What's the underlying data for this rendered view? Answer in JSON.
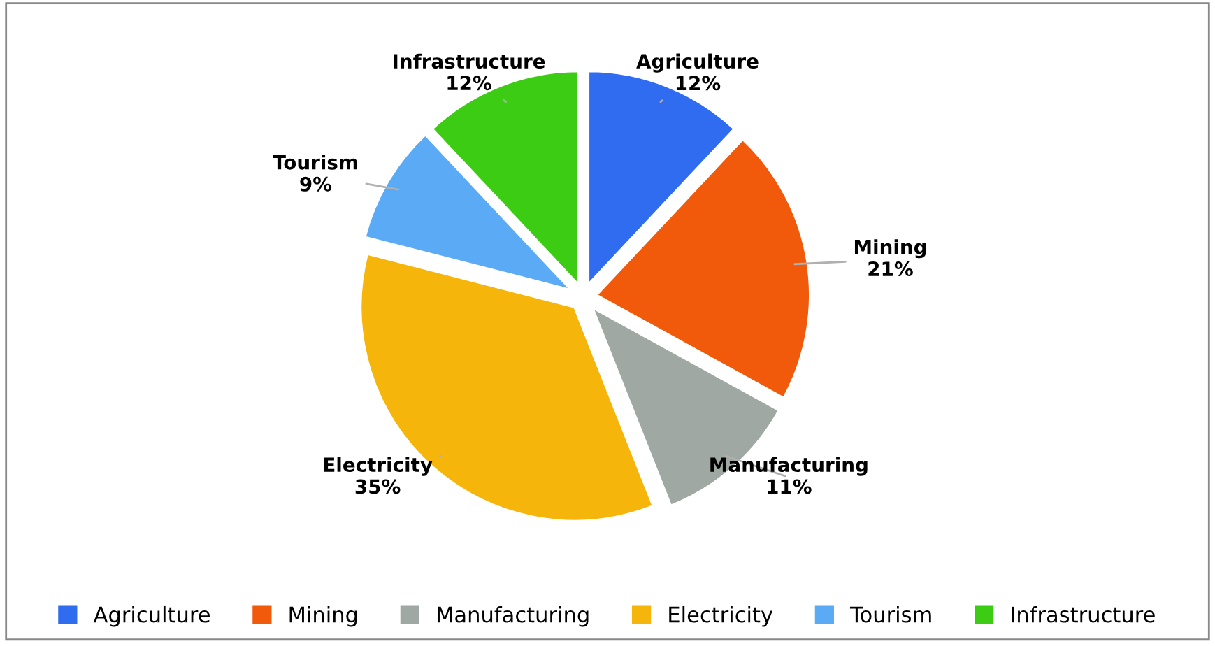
{
  "chart_data": {
    "type": "pie",
    "categories": [
      "Agriculture",
      "Mining",
      "Manufacturing",
      "Electricity",
      "Tourism",
      "Infrastructure"
    ],
    "values": [
      12,
      21,
      11,
      35,
      9,
      12
    ],
    "colors": [
      "#2f6cf0",
      "#f05a0a",
      "#a0a8a4",
      "#f5b50a",
      "#5aaaf5",
      "#3ccc14"
    ],
    "value_labels": [
      "12%",
      "21%",
      "11%",
      "35%",
      "9%",
      "12%"
    ],
    "legend": "bottom"
  }
}
